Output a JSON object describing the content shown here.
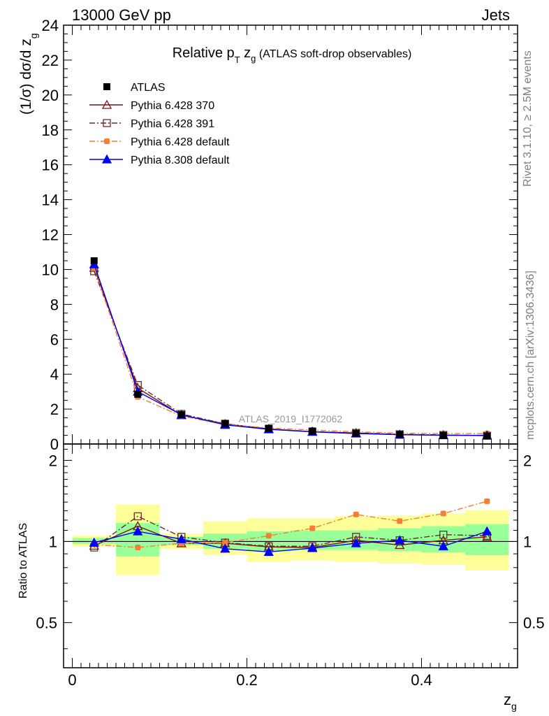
{
  "header": {
    "left": "13000 GeV pp",
    "right": "Jets"
  },
  "side_text": {
    "top": "Rivet 3.1.10, ≥ 2.5M events",
    "bottom": "mcplots.cern.ch [arXiv:1306.3436]"
  },
  "chart_data": {
    "type": "line",
    "title": "Relative p_T z_g (ATLAS soft-drop observables)",
    "title_main": "Relative p",
    "title_sub_T": "T",
    "title_z": " z",
    "title_sub_g": "g",
    "title_paren": " (ATLAS soft-drop observables)",
    "watermark": "ATLAS_2019_I1772062",
    "xlabel_main": "z",
    "xlabel_sub": "g",
    "ylabel_main": "(1/σ) dσ/d z",
    "ylabel_sub": "g",
    "ratio_ylabel": "Ratio to ATLAS",
    "xlim": [
      -0.01,
      0.51
    ],
    "ylim": [
      0,
      24
    ],
    "ratio_ylim": [
      0.34,
      2.3
    ],
    "ratio_log_scale": true,
    "x_ticks": [
      "0",
      "0.2",
      "0.4"
    ],
    "x_tick_values": [
      0,
      0.2,
      0.4
    ],
    "y_ticks": [
      "0",
      "2",
      "4",
      "6",
      "8",
      "10",
      "12",
      "14",
      "16",
      "18",
      "20",
      "22",
      "24"
    ],
    "y_tick_values": [
      0,
      2,
      4,
      6,
      8,
      10,
      12,
      14,
      16,
      18,
      20,
      22,
      24
    ],
    "ratio_ticks": [
      "0.5",
      "1",
      "2"
    ],
    "ratio_tick_values": [
      0.5,
      1,
      2
    ],
    "bin_edges": [
      0,
      0.05,
      0.1,
      0.15,
      0.2,
      0.25,
      0.3,
      0.35,
      0.4,
      0.45,
      0.5
    ],
    "x": [
      0.025,
      0.075,
      0.125,
      0.175,
      0.225,
      0.275,
      0.325,
      0.375,
      0.425,
      0.475
    ],
    "data": {
      "name": "ATLAS",
      "values": [
        10.5,
        2.85,
        1.68,
        1.18,
        0.9,
        0.74,
        0.62,
        0.55,
        0.5,
        0.46
      ],
      "band_inner": [
        [
          0.98,
          1.03
        ],
        [
          0.88,
          1.17
        ],
        [
          0.97,
          1.04
        ],
        [
          0.94,
          1.07
        ],
        [
          0.92,
          1.09
        ],
        [
          0.93,
          1.1
        ],
        [
          0.93,
          1.1
        ],
        [
          0.92,
          1.12
        ],
        [
          0.91,
          1.14
        ],
        [
          0.89,
          1.16
        ]
      ],
      "band_outer": [
        [
          0.96,
          1.05
        ],
        [
          0.75,
          1.37
        ],
        [
          0.94,
          1.07
        ],
        [
          0.89,
          1.19
        ],
        [
          0.84,
          1.22
        ],
        [
          0.85,
          1.22
        ],
        [
          0.84,
          1.24
        ],
        [
          0.83,
          1.25
        ],
        [
          0.82,
          1.27
        ],
        [
          0.78,
          1.31
        ]
      ]
    },
    "series": [
      {
        "name": "Pythia 6.428 370",
        "color": "#7b1111",
        "dash": "",
        "marker": "triangle-open",
        "values": [
          10.1,
          3.2,
          1.65,
          1.15,
          0.86,
          0.7,
          0.63,
          0.53,
          0.51,
          0.48
        ],
        "ratio": [
          0.965,
          1.14,
          0.985,
          0.985,
          0.955,
          0.95,
          1.01,
          0.97,
          1.01,
          1.04
        ]
      },
      {
        "name": "Pythia 6.428 391",
        "color": "#6b2b2b",
        "dash": "8,3,2,3",
        "marker": "square-open",
        "values": [
          9.9,
          3.38,
          1.72,
          1.16,
          0.87,
          0.71,
          0.64,
          0.56,
          0.52,
          0.48
        ],
        "ratio": [
          0.95,
          1.24,
          1.04,
          0.99,
          0.96,
          0.96,
          1.04,
          1.01,
          1.06,
          1.05
        ]
      },
      {
        "name": "Pythia 6.428 default",
        "color": "#f57f32",
        "dash": "8,3,2,3",
        "marker": "circle-filled",
        "values": [
          10.1,
          2.7,
          1.6,
          1.12,
          0.92,
          0.8,
          0.7,
          0.62,
          0.6,
          0.6
        ],
        "ratio": [
          0.975,
          0.95,
          0.985,
          0.99,
          1.05,
          1.12,
          1.26,
          1.19,
          1.27,
          1.41
        ]
      },
      {
        "name": "Pythia 8.308 default",
        "color": "#0000ff",
        "dash": "",
        "marker": "triangle-filled",
        "values": [
          10.3,
          3.0,
          1.68,
          1.1,
          0.84,
          0.7,
          0.6,
          0.54,
          0.5,
          0.5
        ],
        "ratio": [
          0.99,
          1.09,
          1.02,
          0.94,
          0.915,
          0.945,
          0.985,
          1.01,
          0.96,
          1.09
        ]
      }
    ],
    "legend_placement": "top-left",
    "colors": {
      "band_inner": "#99ff99",
      "band_outer": "#ffff99",
      "data": "#000000",
      "watermark": "#999999"
    }
  }
}
